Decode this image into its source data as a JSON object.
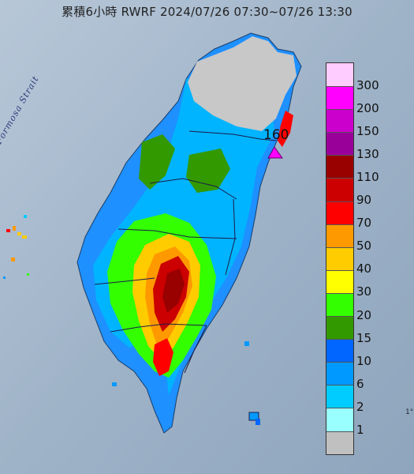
{
  "title": "累積6小時 RWRF 2024/07/26 07:30~07/26 13:30",
  "strait_label": "Formosa Strait",
  "peak_label": "160",
  "edge_text": "1°",
  "legend": {
    "levels": [
      {
        "label": "300",
        "color": "#ffccff"
      },
      {
        "label": "200",
        "color": "#ff00ff"
      },
      {
        "label": "150",
        "color": "#cc00cc"
      },
      {
        "label": "130",
        "color": "#990099"
      },
      {
        "label": "110",
        "color": "#990000"
      },
      {
        "label": "90",
        "color": "#cc0000"
      },
      {
        "label": "70",
        "color": "#ff0000"
      },
      {
        "label": "50",
        "color": "#ff9900"
      },
      {
        "label": "40",
        "color": "#ffcc00"
      },
      {
        "label": "30",
        "color": "#ffff00"
      },
      {
        "label": "20",
        "color": "#33ff00"
      },
      {
        "label": "15",
        "color": "#339900"
      },
      {
        "label": "10",
        "color": "#0066ff"
      },
      {
        "label": "6",
        "color": "#0099ff"
      },
      {
        "label": "2",
        "color": "#00ccff"
      },
      {
        "label": "1",
        "color": "#99ffff"
      },
      {
        "label": "",
        "color": "#c0c0c0"
      }
    ]
  },
  "colors": {
    "sea": "#9fb3c8",
    "land_base": "#1e8fff",
    "no_data": "#c8c8c8",
    "peak_marker": "#ff00ff"
  }
}
